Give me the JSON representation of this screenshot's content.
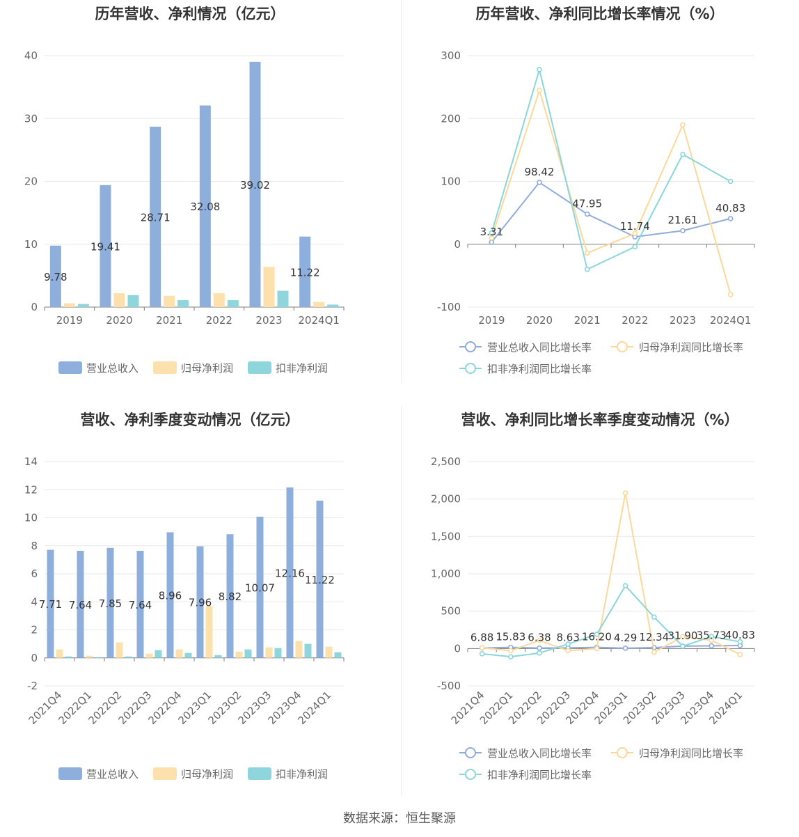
{
  "colors": {
    "revenue": "#8eaedb",
    "net_profit": "#fde1ad",
    "deducted_profit": "#8ed6dc",
    "revenue_line": "#90abd9",
    "net_line": "#fcd89b",
    "deducted_line": "#8ad6da",
    "grid": "#e8e8ee",
    "axis": "#7c7c7c"
  },
  "source_text": "数据来源：恒生聚源",
  "charts": [
    {
      "id": "annual-amount",
      "title": "历年营收、净利情况（亿元）",
      "legend": [
        "营业总收入",
        "归母净利润",
        "扣非净利润"
      ]
    },
    {
      "id": "annual-growth",
      "title": "历年营收、净利同比增长率情况（%）",
      "legend": [
        "营业总收入同比增长率",
        "归母净利润同比增长率",
        "扣非净利润同比增长率"
      ]
    },
    {
      "id": "quarterly-amount",
      "title": "营收、净利季度变动情况（亿元）",
      "legend": [
        "营业总收入",
        "归母净利润",
        "扣非净利润"
      ]
    },
    {
      "id": "quarterly-growth",
      "title": "营收、净利同比增长率季度变动情况（%）",
      "legend": [
        "营业总收入同比增长率",
        "归母净利润同比增长率",
        "扣非净利润同比增长率"
      ]
    }
  ],
  "chart_data": [
    {
      "type": "bar",
      "title": "历年营收、净利情况（亿元）",
      "categories": [
        "2019",
        "2020",
        "2021",
        "2022",
        "2023",
        "2024Q1"
      ],
      "ylim": [
        0,
        40
      ],
      "yticks": [
        0,
        10,
        20,
        30,
        40
      ],
      "grid": true,
      "legend_position": "bottom",
      "series": [
        {
          "name": "营业总收入",
          "values": [
            9.78,
            19.41,
            28.71,
            32.08,
            39.02,
            11.22
          ],
          "labels": [
            "9.78",
            "19.41",
            "28.71",
            "32.08",
            "39.02",
            "11.22"
          ]
        },
        {
          "name": "归母净利润",
          "values": [
            0.6,
            2.2,
            1.8,
            2.2,
            6.4,
            0.8
          ]
        },
        {
          "name": "扣非净利润",
          "values": [
            0.5,
            1.9,
            1.1,
            1.1,
            2.6,
            0.4
          ]
        }
      ]
    },
    {
      "type": "line",
      "title": "历年营收、净利同比增长率情况（%）",
      "categories": [
        "2019",
        "2020",
        "2021",
        "2022",
        "2023",
        "2024Q1"
      ],
      "ylim": [
        -100,
        300
      ],
      "yticks": [
        -100,
        0,
        100,
        200,
        300
      ],
      "grid": true,
      "legend_position": "bottom",
      "series": [
        {
          "name": "营业总收入同比增长率",
          "values": [
            3.31,
            98.42,
            47.95,
            11.74,
            21.61,
            40.83
          ],
          "labels": [
            "3.31",
            "98.42",
            "47.95",
            "11.74",
            "21.61",
            "40.83"
          ]
        },
        {
          "name": "归母净利润同比增长率",
          "values": [
            10,
            245,
            -14,
            17,
            190,
            -80
          ]
        },
        {
          "name": "扣非净利润同比增长率",
          "values": [
            18,
            278,
            -40,
            -4,
            143,
            100
          ]
        }
      ]
    },
    {
      "type": "bar",
      "title": "营收、净利季度变动情况（亿元）",
      "categories": [
        "2021Q4",
        "2022Q1",
        "2022Q2",
        "2022Q3",
        "2022Q4",
        "2023Q1",
        "2023Q2",
        "2023Q3",
        "2023Q4",
        "2024Q1"
      ],
      "ylim": [
        -2,
        14
      ],
      "yticks": [
        -2,
        0,
        2,
        4,
        6,
        8,
        10,
        12,
        14
      ],
      "grid": true,
      "legend_position": "bottom",
      "series": [
        {
          "name": "营业总收入",
          "values": [
            7.71,
            7.64,
            7.85,
            7.64,
            8.96,
            7.96,
            8.82,
            10.07,
            12.16,
            11.22
          ],
          "labels": [
            "7.71",
            "7.64",
            "7.85",
            "7.64",
            "8.96",
            "7.96",
            "8.82",
            "10.07",
            "12.16",
            "11.22"
          ]
        },
        {
          "name": "归母净利润",
          "values": [
            0.6,
            0.15,
            1.1,
            0.3,
            0.6,
            3.7,
            0.45,
            0.75,
            1.2,
            0.8
          ]
        },
        {
          "name": "扣非净利润",
          "values": [
            0.1,
            0.05,
            0.1,
            0.55,
            0.35,
            0.2,
            0.6,
            0.7,
            1.0,
            0.4
          ]
        }
      ]
    },
    {
      "type": "line",
      "title": "营收、净利同比增长率季度变动情况（%）",
      "categories": [
        "2021Q4",
        "2022Q1",
        "2022Q2",
        "2022Q3",
        "2022Q4",
        "2023Q1",
        "2023Q2",
        "2023Q3",
        "2023Q4",
        "2024Q1"
      ],
      "ylim": [
        -500,
        2500
      ],
      "yticks": [
        -500,
        0,
        500,
        1000,
        1500,
        2000,
        2500
      ],
      "yticklabels": [
        "-500",
        "0",
        "500",
        "1,000",
        "1,500",
        "2,000",
        "2,500"
      ],
      "grid": true,
      "legend_position": "bottom",
      "series": [
        {
          "name": "营业总收入同比增长率",
          "values": [
            6.88,
            15.83,
            6.38,
            8.63,
            16.2,
            4.29,
            12.34,
            31.9,
            35.73,
            40.83
          ],
          "labels": [
            "6.88",
            "15.83",
            "6.38",
            "8.63",
            "16.20",
            "4.29",
            "12.34",
            "31.90",
            "35.73",
            "40.83"
          ]
        },
        {
          "name": "归母净利润同比增长率",
          "values": [
            10,
            -30,
            110,
            -30,
            0,
            2080,
            -50,
            160,
            110,
            -80
          ]
        },
        {
          "name": "扣非净利润同比增长率",
          "values": [
            -70,
            -110,
            -60,
            60,
            190,
            840,
            420,
            30,
            160,
            90
          ]
        }
      ]
    }
  ]
}
